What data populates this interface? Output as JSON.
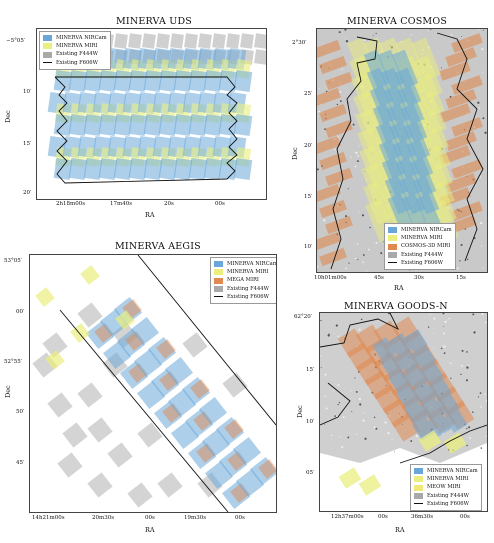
{
  "colors": {
    "nircam": "#6aa7d8",
    "miri": "#e9ee7e",
    "mega": "#e08a52",
    "cosmos3d": "#e08a52",
    "meow": "#f0e87a",
    "f444w": "#a9a9a9",
    "f606w_line": "#111111"
  },
  "uds": {
    "title": "MINERVA UDS",
    "xlabel": "RA",
    "ylabel": "Dec",
    "xticks": [
      "2h18m00s",
      "17m40s",
      "20s",
      "00s"
    ],
    "yticks": [
      "−5°05′",
      "10′",
      "15′",
      "20′"
    ],
    "legend": [
      "MINERVA NIRCam",
      "MINERVA MIRI",
      "Existing F444W",
      "Existing F606W"
    ]
  },
  "cosmos": {
    "title": "MINERVA COSMOS",
    "xlabel": "RA",
    "ylabel": "Dec",
    "xticks": [
      "10h01m00s",
      "45s",
      "30s",
      "15s"
    ],
    "yticks": [
      "2°30′",
      "25′",
      "20′",
      "15′",
      "10′"
    ],
    "legend": [
      "MINERVA NIRCam",
      "MINERVA MIRI",
      "COSMOS-3D MIRI",
      "Existing F444W",
      "Existing F606W"
    ]
  },
  "aegis": {
    "title": "MINERVA AEGIS",
    "xlabel": "RA",
    "ylabel": "Dec",
    "xticks": [
      "14h21m00s",
      "20m30s",
      "00s",
      "19m30s",
      "00s"
    ],
    "yticks": [
      "53°05′",
      "00′",
      "52°55′",
      "50′",
      "45′"
    ],
    "legend": [
      "MINERVA NIRCam",
      "MINERVA MIRI",
      "MEGA MIRI",
      "Existing F444W",
      "Existing F606W"
    ]
  },
  "goodsn": {
    "title": "MINERVA GOODS-N",
    "xlabel": "RA",
    "ylabel": "Dec",
    "xticks": [
      "12h37m00s",
      "00s",
      "36m30s",
      "00s"
    ],
    "yticks": [
      "62°20′",
      "15′",
      "10′",
      "05′"
    ],
    "legend": [
      "MINERVA NIRCam",
      "MINERVA MIRI",
      "MEOW MIRI",
      "Existing F444W",
      "Existing F606W"
    ]
  }
}
